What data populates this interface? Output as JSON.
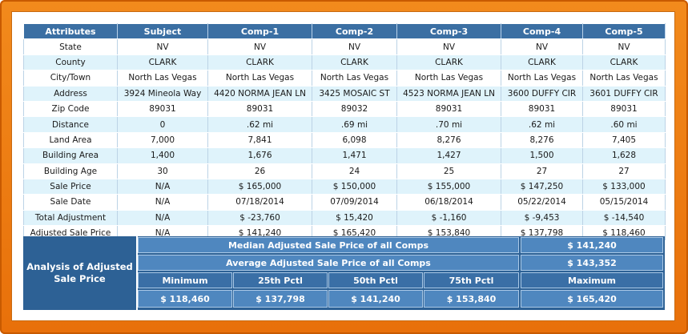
{
  "table": {
    "headers": [
      "Attributes",
      "Subject",
      "Comp-1",
      "Comp-2",
      "Comp-3",
      "Comp-4",
      "Comp-5"
    ],
    "rows": [
      [
        "State",
        "NV",
        "NV",
        "NV",
        "NV",
        "NV",
        "NV"
      ],
      [
        "County",
        "CLARK",
        "CLARK",
        "CLARK",
        "CLARK",
        "CLARK",
        "CLARK"
      ],
      [
        "City/Town",
        "North Las Vegas",
        "North Las Vegas",
        "North Las Vegas",
        "North Las Vegas",
        "North Las Vegas",
        "North Las Vegas"
      ],
      [
        "Address",
        "3924 Mineola Way",
        "4420 NORMA JEAN LN",
        "3425 MOSAIC ST",
        "4523 NORMA JEAN LN",
        "3600 DUFFY CIR",
        "3601 DUFFY CIR"
      ],
      [
        "Zip Code",
        "89031",
        "89031",
        "89032",
        "89031",
        "89031",
        "89031"
      ],
      [
        "Distance",
        "0",
        ".62 mi",
        ".69 mi",
        ".70 mi",
        ".62 mi",
        ".60 mi"
      ],
      [
        "Land Area",
        "7,000",
        "7,841",
        "6,098",
        "8,276",
        "8,276",
        "7,405"
      ],
      [
        "Building Area",
        "1,400",
        "1,676",
        "1,471",
        "1,427",
        "1,500",
        "1,628"
      ],
      [
        "Building Age",
        "30",
        "26",
        "24",
        "25",
        "27",
        "27"
      ],
      [
        "Sale Price",
        "N/A",
        "$ 165,000",
        "$ 150,000",
        "$ 155,000",
        "$ 147,250",
        "$ 133,000"
      ],
      [
        "Sale Date",
        "N/A",
        "07/18/2014",
        "07/09/2014",
        "06/18/2014",
        "05/22/2014",
        "05/15/2014"
      ],
      [
        "Total Adjustment",
        "N/A",
        "$ -23,760",
        "$ 15,420",
        "$ -1,160",
        "$ -9,453",
        "$ -14,540"
      ],
      [
        "Adjusted Sale Price",
        "N/A",
        "$ 141,240",
        "$ 165,420",
        "$ 153,840",
        "$ 137,798",
        "$ 118,460"
      ]
    ]
  },
  "analysis": {
    "label": "Analysis of Adjusted Sale Price",
    "median_label": "Median Adjusted Sale Price of all Comps",
    "median_value": "$ 141,240",
    "average_label": "Average Adjusted Sale Price of all Comps",
    "average_value": "$ 143,352",
    "stat_headers": [
      "Minimum",
      "25th Pctl",
      "50th Pctl",
      "75th Pctl",
      "Maximum"
    ],
    "stat_values": [
      "$ 118,460",
      "$ 137,798",
      "$ 141,240",
      "$ 153,840",
      "$ 165,420"
    ]
  }
}
